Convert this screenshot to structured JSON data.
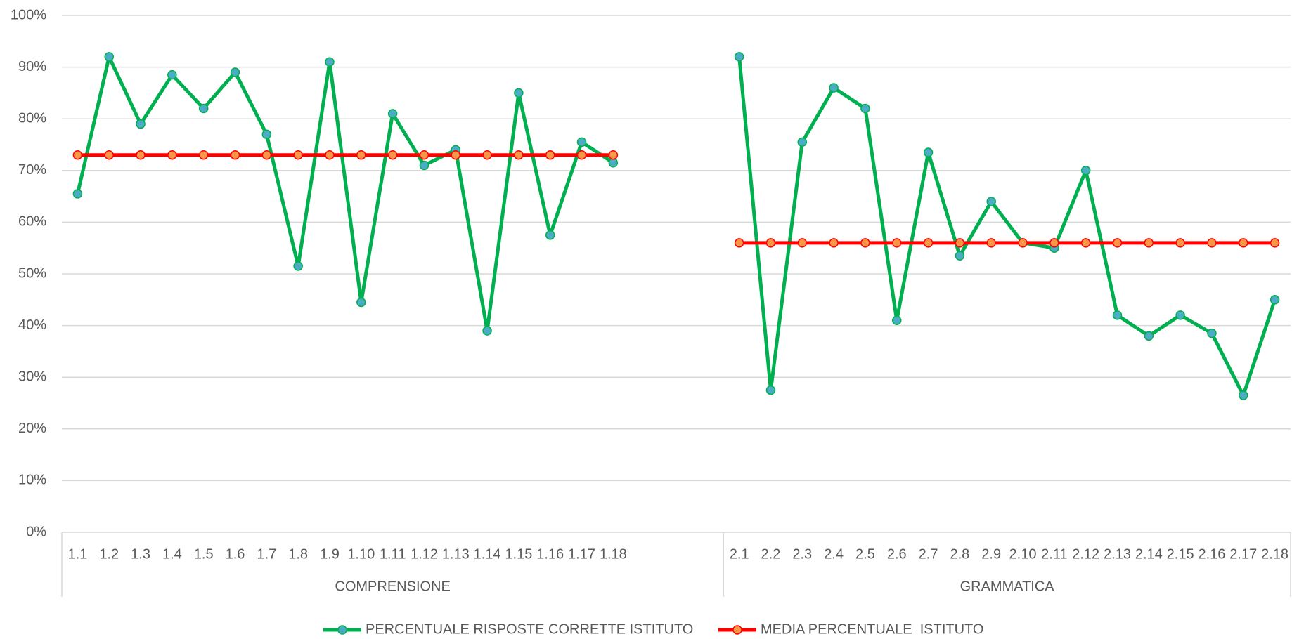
{
  "chart_data": {
    "type": "line",
    "categories": [
      "1.1",
      "1.2",
      "1.3",
      "1.4",
      "1.5",
      "1.6",
      "1.7",
      "1.8",
      "1.9",
      "1.10",
      "1.11",
      "1.12",
      "1.13",
      "1.14",
      "1.15",
      "1.16",
      "1.17",
      "1.18",
      null,
      null,
      null,
      "2.1",
      "2.2",
      "2.3",
      "2.4",
      "2.5",
      "2.6",
      "2.7",
      "2.8",
      "2.9",
      "2.10",
      "2.11",
      "2.12",
      "2.13",
      "2.14",
      "2.15",
      "2.16",
      "2.17",
      "2.18"
    ],
    "groups": [
      {
        "label": "COMPRENSIONE",
        "start": 0,
        "end": 20
      },
      {
        "label": "GRAMMATICA",
        "start": 21,
        "end": 38
      }
    ],
    "series": [
      {
        "name": "PERCENTUALE RISPOSTE CORRETTE ISTITUTO",
        "color": "#00b050",
        "marker_color": "#4bacc6",
        "values": [
          65.5,
          92,
          79,
          88.5,
          82,
          89,
          77,
          51.5,
          91,
          44.5,
          81,
          71,
          74,
          39,
          85,
          57.5,
          75.5,
          71.5,
          null,
          null,
          null,
          92,
          27.5,
          75.5,
          86,
          82,
          41,
          73.5,
          53.5,
          64,
          56,
          55,
          70,
          42,
          38,
          42,
          38.5,
          26.5,
          45
        ]
      },
      {
        "name": "MEDIA PERCENTUALE  ISTITUTO",
        "color": "#ff0000",
        "marker_color": "#f79646",
        "values": [
          73,
          73,
          73,
          73,
          73,
          73,
          73,
          73,
          73,
          73,
          73,
          73,
          73,
          73,
          73,
          73,
          73,
          73,
          null,
          null,
          null,
          56,
          56,
          56,
          56,
          56,
          56,
          56,
          56,
          56,
          56,
          56,
          56,
          56,
          56,
          56,
          56,
          56,
          56
        ]
      }
    ],
    "ylim": [
      0,
      100
    ],
    "yticks": [
      {
        "value": 0,
        "label": "0%"
      },
      {
        "value": 10,
        "label": "10%"
      },
      {
        "value": 20,
        "label": "20%"
      },
      {
        "value": 30,
        "label": "30%"
      },
      {
        "value": 40,
        "label": "40%"
      },
      {
        "value": 50,
        "label": "50%"
      },
      {
        "value": 60,
        "label": "60%"
      },
      {
        "value": 70,
        "label": "70%"
      },
      {
        "value": 80,
        "label": "80%"
      },
      {
        "value": 90,
        "label": "90%"
      },
      {
        "value": 100,
        "label": "100%"
      }
    ],
    "grid": true
  }
}
